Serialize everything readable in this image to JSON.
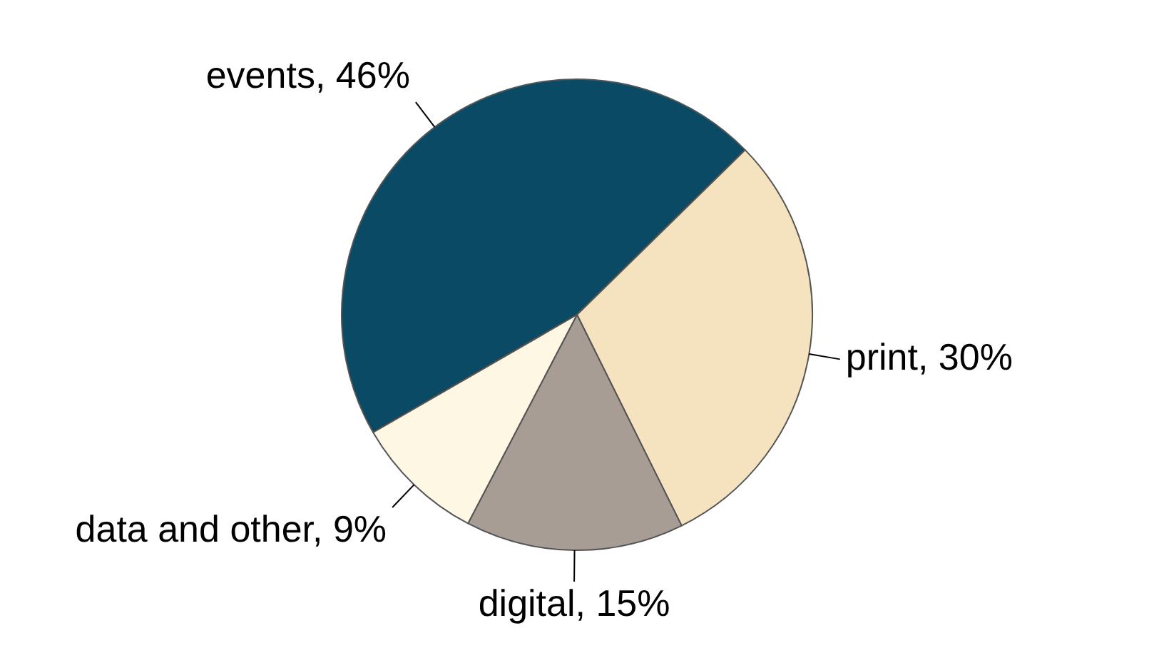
{
  "chart_data": {
    "type": "pie",
    "categories": [
      "events",
      "print",
      "digital",
      "data and other"
    ],
    "values": [
      46,
      30,
      15,
      9
    ],
    "colors": [
      "#0b4a64",
      "#f5e3c0",
      "#a89d94",
      "#fdf7e3"
    ],
    "value_labels": [
      "46%",
      "30%",
      "15%",
      "9%"
    ],
    "legend": false
  }
}
